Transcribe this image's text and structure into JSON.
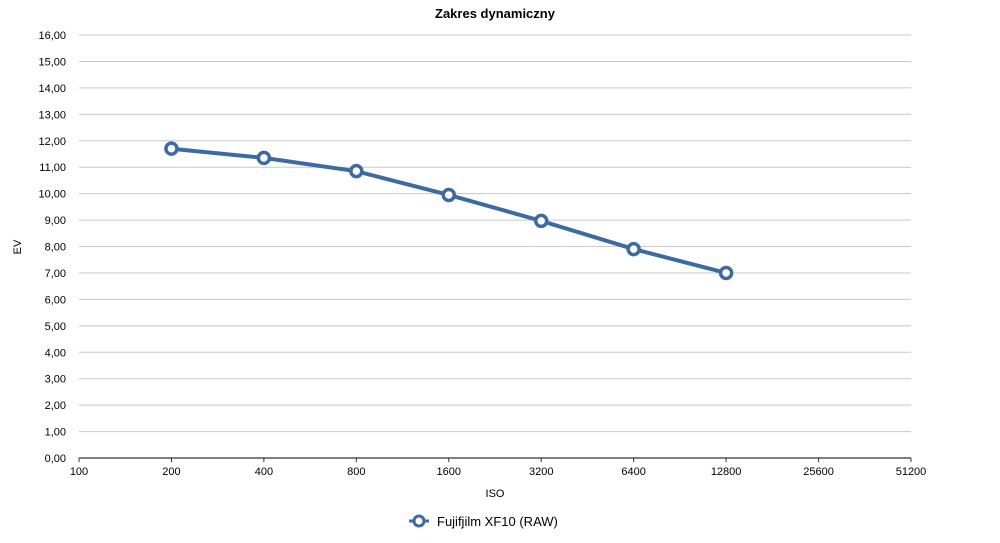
{
  "chart_data": {
    "type": "line",
    "title": "Zakres dynamiczny",
    "xlabel": "ISO",
    "ylabel": "EV",
    "x_scale": "log2",
    "x_ticks": [
      "100",
      "200",
      "400",
      "800",
      "1600",
      "3200",
      "6400",
      "12800",
      "25600",
      "51200"
    ],
    "y_ticks": [
      "0,00",
      "1,00",
      "2,00",
      "3,00",
      "4,00",
      "5,00",
      "6,00",
      "7,00",
      "8,00",
      "9,00",
      "10,00",
      "11,00",
      "12,00",
      "13,00",
      "14,00",
      "15,00",
      "16,00"
    ],
    "ylim": [
      0,
      16
    ],
    "xlim": [
      100,
      51200
    ],
    "grid": true,
    "legend_position": "bottom",
    "series": [
      {
        "name": "Fujifjilm XF10 (RAW)",
        "color": "#3d6aa0",
        "x": [
          200,
          400,
          800,
          1600,
          3200,
          6400,
          12800
        ],
        "values": [
          11.7,
          11.35,
          10.85,
          9.95,
          8.97,
          7.9,
          7.0
        ]
      }
    ]
  }
}
